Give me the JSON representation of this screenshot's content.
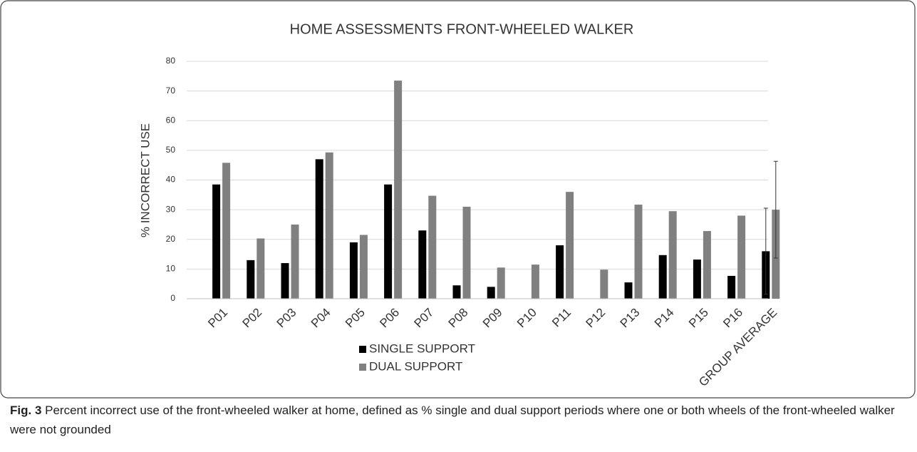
{
  "chart_data": {
    "type": "bar",
    "title": "HOME ASSESSMENTS FRONT-WHEELED WALKER",
    "y_label": "% INCORRECT USE",
    "categories": [
      "P01",
      "P02",
      "P03",
      "P04",
      "P05",
      "P06",
      "P07",
      "P08",
      "P09",
      "P10",
      "P11",
      "P12",
      "P13",
      "P14",
      "P15",
      "P16",
      "GROUP AVERAGE"
    ],
    "series": [
      {
        "name": "SINGLE SUPPORT",
        "color": "#000000",
        "values": [
          38.5,
          13,
          12,
          47,
          19,
          38.5,
          23,
          4.5,
          4,
          0,
          18,
          0,
          5.5,
          14.7,
          13.2,
          7.7,
          16
        ],
        "errors": [
          null,
          null,
          null,
          null,
          null,
          null,
          null,
          null,
          null,
          null,
          null,
          null,
          null,
          null,
          null,
          null,
          14.5
        ]
      },
      {
        "name": "DUAL SUPPORT",
        "color": "#808080",
        "values": [
          45.8,
          20.3,
          25,
          49.3,
          21.5,
          73.5,
          34.7,
          31,
          10.5,
          11.5,
          36,
          9.8,
          31.7,
          29.5,
          22.8,
          28,
          30
        ],
        "errors": [
          null,
          null,
          null,
          null,
          null,
          null,
          null,
          null,
          null,
          null,
          null,
          null,
          null,
          null,
          null,
          null,
          16.3
        ]
      }
    ],
    "ylim": [
      0,
      80
    ],
    "yticks": [
      0,
      10,
      20,
      30,
      40,
      50,
      60,
      70,
      80
    ],
    "grid": true
  },
  "caption": {
    "label": "Fig. 3",
    "text": "Percent incorrect use of the front-wheeled walker at home, defined as % single and dual support periods where one or both wheels of the front-wheeled walker were not grounded"
  }
}
